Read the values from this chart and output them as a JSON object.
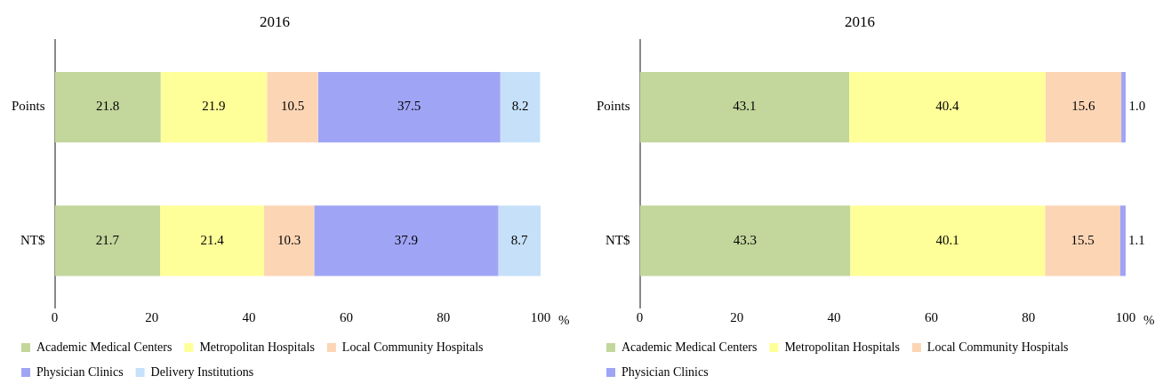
{
  "chart_data": [
    {
      "type": "bar",
      "orientation": "horizontal",
      "stacked": true,
      "title": "2016",
      "xlabel": "%",
      "categories": [
        "Points",
        "NT$"
      ],
      "xlim": [
        0,
        100
      ],
      "xticks": [
        0,
        20,
        40,
        60,
        80,
        100
      ],
      "grid": false,
      "legend": "bottom",
      "data_labels": true,
      "series": [
        {
          "name": "Academic Medical Centers",
          "color": "#c3d69b",
          "values": [
            21.8,
            21.7
          ]
        },
        {
          "name": "Metropolitan Hospitals",
          "color": "#ffff99",
          "values": [
            21.9,
            21.4
          ]
        },
        {
          "name": "Local Community Hospitals",
          "color": "#fcd5b5",
          "values": [
            10.5,
            10.3
          ]
        },
        {
          "name": "Physician Clinics",
          "color": "#9fa4f5",
          "values": [
            37.5,
            37.9
          ]
        },
        {
          "name": "Delivery Institutions",
          "color": "#c6e0f9",
          "values": [
            8.2,
            8.7
          ]
        }
      ]
    },
    {
      "type": "bar",
      "orientation": "horizontal",
      "stacked": true,
      "title": "2016",
      "xlabel": "%",
      "categories": [
        "Points",
        "NT$"
      ],
      "xlim": [
        0,
        100
      ],
      "xticks": [
        0,
        20,
        40,
        60,
        80,
        100
      ],
      "grid": false,
      "legend": "bottom",
      "series": [
        {
          "name": "Academic Medical Centers",
          "color": "#c3d69b",
          "values": [
            43.1,
            43.3
          ],
          "value_labels": [
            "43.1",
            "43.3"
          ]
        },
        {
          "name": "Metropolitan Hospitals",
          "color": "#ffff99",
          "values": [
            40.4,
            40.1
          ],
          "value_labels": [
            "40.4",
            "40.1"
          ]
        },
        {
          "name": "Local Community Hospitals",
          "color": "#fcd5b5",
          "values": [
            15.6,
            15.5
          ],
          "value_labels": [
            "15.6",
            "15.5"
          ]
        },
        {
          "name": "Physician Clinics",
          "color": "#9fa4f5",
          "values": [
            1.0,
            1.1
          ],
          "value_labels": [
            "1.0",
            "1.1"
          ]
        }
      ]
    }
  ]
}
